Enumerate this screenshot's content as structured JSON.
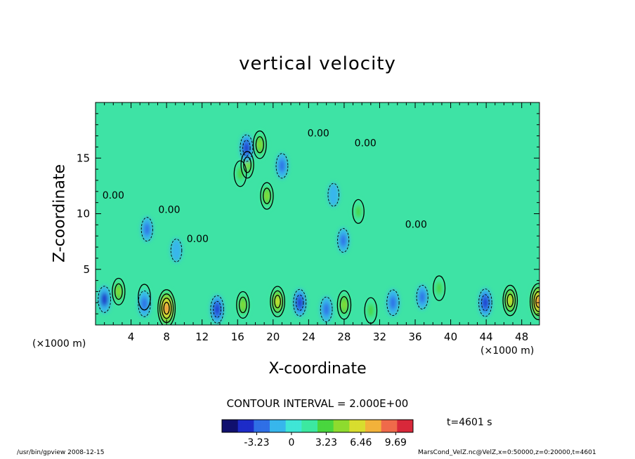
{
  "chart_data": {
    "type": "heatmap",
    "title": "vertical velocity",
    "xlabel": "X-coordinate",
    "ylabel": "Z-coordinate",
    "x_unit_left": "(×1000 m)",
    "x_unit_right": "(×1000 m)",
    "xlim": [
      0,
      50
    ],
    "ylim": [
      0,
      20
    ],
    "x_ticks": [
      4,
      8,
      12,
      16,
      20,
      24,
      28,
      32,
      36,
      40,
      44,
      48
    ],
    "y_ticks": [
      5,
      10,
      15
    ],
    "contour_interval_text": "CONTOUR INTERVAL = 2.000E+00",
    "contour_labels": [
      {
        "text": "0.00",
        "x": 2,
        "z": 11.6
      },
      {
        "text": "0.00",
        "x": 8.3,
        "z": 10.3
      },
      {
        "text": "0.00",
        "x": 11.5,
        "z": 7.7
      },
      {
        "text": "0.00",
        "x": 25.1,
        "z": 17.2
      },
      {
        "text": "0.00",
        "x": 30.4,
        "z": 16.3
      },
      {
        "text": "0.00",
        "x": 36.1,
        "z": 9.0
      }
    ],
    "colorbar": {
      "ticks": [
        "-3.23",
        "0",
        "3.23",
        "6.46",
        "9.69"
      ],
      "values": [
        -3.23,
        0,
        3.23,
        6.46,
        9.69
      ],
      "range": [
        -6.46,
        11.3
      ],
      "colors": [
        "#10106e",
        "#1d2bc8",
        "#2f6fe6",
        "#37b6ec",
        "#3fe6d6",
        "#3ce8a0",
        "#49d63e",
        "#8edb2e",
        "#d8dd2e",
        "#f2b23a",
        "#ef6a4a",
        "#d8283a"
      ]
    },
    "time_label": "t=4601 s",
    "background_value_color": "#3ee3a5",
    "features": {
      "updrafts": [
        {
          "x": 8.0,
          "z": 1.5,
          "w": 9.5
        },
        {
          "x": 2.6,
          "z": 3.0,
          "w": 4.0
        },
        {
          "x": 5.5,
          "z": 2.5,
          "w": 3.5
        },
        {
          "x": 16.6,
          "z": 1.8,
          "w": 4.0
        },
        {
          "x": 20.5,
          "z": 2.1,
          "w": 6.0
        },
        {
          "x": 28.0,
          "z": 1.8,
          "w": 5.0
        },
        {
          "x": 31.0,
          "z": 1.3,
          "w": 3.5
        },
        {
          "x": 46.7,
          "z": 2.2,
          "w": 6.0
        },
        {
          "x": 49.9,
          "z": 2.1,
          "w": 9.0
        },
        {
          "x": 17.1,
          "z": 14.4,
          "w": 4.0
        },
        {
          "x": 18.5,
          "z": 16.2,
          "w": 4.5
        },
        {
          "x": 19.3,
          "z": 11.6,
          "w": 4.0
        },
        {
          "x": 16.3,
          "z": 13.6,
          "w": 3.5
        },
        {
          "x": 38.7,
          "z": 3.3,
          "w": 3.0
        },
        {
          "x": 29.6,
          "z": 10.2,
          "w": 2.5
        }
      ],
      "downdrafts": [
        {
          "x": 1.0,
          "z": 2.3,
          "w": -3.8
        },
        {
          "x": 5.5,
          "z": 1.9,
          "w": -3.5
        },
        {
          "x": 13.7,
          "z": 1.4,
          "w": -4.5
        },
        {
          "x": 23.0,
          "z": 2.0,
          "w": -4.0
        },
        {
          "x": 26.0,
          "z": 1.4,
          "w": -3.0
        },
        {
          "x": 33.5,
          "z": 2.0,
          "w": -3.5
        },
        {
          "x": 36.8,
          "z": 2.5,
          "w": -2.5
        },
        {
          "x": 43.9,
          "z": 2.0,
          "w": -4.5
        },
        {
          "x": 17.0,
          "z": 15.9,
          "w": -4.0
        },
        {
          "x": 21.0,
          "z": 14.3,
          "w": -3.0
        },
        {
          "x": 5.8,
          "z": 8.6,
          "w": -2.5
        },
        {
          "x": 9.1,
          "z": 6.7,
          "w": -2.0
        },
        {
          "x": 27.9,
          "z": 7.6,
          "w": -2.5
        },
        {
          "x": 26.8,
          "z": 11.7,
          "w": -2.0
        }
      ]
    }
  },
  "footer": {
    "left": "/usr/bin/gpview  2008-12-15",
    "right": "MarsCond_VelZ.nc@VelZ,x=0:50000,z=0:20000,t=4601"
  }
}
